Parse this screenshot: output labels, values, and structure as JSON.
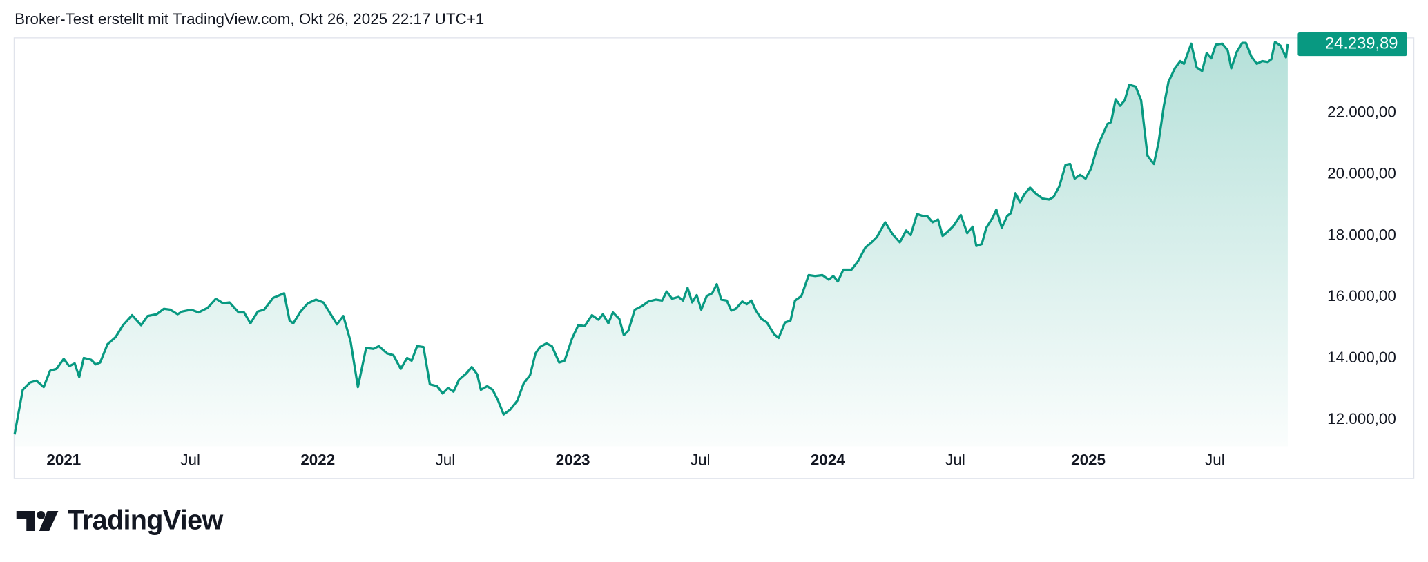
{
  "chart_data": {
    "type": "area",
    "title": "Broker-Test erstellt mit TradingView.com, Okt 26, 2025 22:17 UTC+1",
    "brand": "TradingView",
    "color": "#089981",
    "price_label": "24.239,89",
    "xlim": [
      0,
      1398
    ],
    "ylim": [
      11140,
      24460
    ],
    "xticks": [
      {
        "value": 54,
        "label": "2021"
      },
      {
        "value": 193,
        "label": "Jul"
      },
      {
        "value": 333,
        "label": "2022"
      },
      {
        "value": 473,
        "label": "Jul"
      },
      {
        "value": 613,
        "label": "2023"
      },
      {
        "value": 753,
        "label": "Jul"
      },
      {
        "value": 893,
        "label": "2024"
      },
      {
        "value": 1033,
        "label": "Jul"
      },
      {
        "value": 1179,
        "label": "2025"
      },
      {
        "value": 1318,
        "label": "Jul"
      }
    ],
    "yticks": [
      {
        "value": 12000,
        "label": "12.000,00"
      },
      {
        "value": 14000,
        "label": "14.000,00"
      },
      {
        "value": 16000,
        "label": "16.000,00"
      },
      {
        "value": 18000,
        "label": "18.000,00"
      },
      {
        "value": 20000,
        "label": "20.000,00"
      },
      {
        "value": 22000,
        "label": "22.000,00"
      }
    ],
    "x": [
      0,
      9,
      17,
      24,
      32,
      39,
      46,
      54,
      60,
      66,
      71,
      76,
      84,
      89,
      94,
      102,
      111,
      119,
      129,
      139,
      146,
      156,
      164,
      171,
      179,
      184,
      194,
      202,
      212,
      221,
      229,
      236,
      246,
      252,
      259,
      267,
      274,
      284,
      296,
      302,
      306,
      314,
      322,
      331,
      339,
      349,
      354,
      361,
      369,
      377,
      386,
      394,
      400,
      409,
      416,
      424,
      431,
      436,
      442,
      449,
      456,
      464,
      470,
      476,
      482,
      488,
      496,
      502,
      508,
      512,
      519,
      525,
      531,
      537,
      544,
      552,
      559,
      566,
      572,
      577,
      584,
      590,
      598,
      604,
      612,
      619,
      626,
      634,
      641,
      646,
      652,
      657,
      664,
      669,
      674,
      681,
      689,
      696,
      704,
      711,
      716,
      722,
      729,
      734,
      739,
      744,
      749,
      754,
      760,
      766,
      771,
      776,
      782,
      787,
      792,
      799,
      804,
      809,
      814,
      820,
      826,
      834,
      839,
      846,
      852,
      857,
      864,
      872,
      879,
      887,
      894,
      899,
      904,
      910,
      919,
      926,
      934,
      941,
      947,
      956,
      964,
      972,
      979,
      984,
      991,
      997,
      1002,
      1008,
      1014,
      1019,
      1024,
      1031,
      1039,
      1046,
      1052,
      1056,
      1062,
      1067,
      1074,
      1078,
      1084,
      1090,
      1094,
      1099,
      1104,
      1109,
      1115,
      1122,
      1129,
      1136,
      1141,
      1147,
      1154,
      1159,
      1164,
      1170,
      1176,
      1182,
      1189,
      1196,
      1200,
      1204,
      1209,
      1214,
      1219,
      1224,
      1231,
      1237,
      1244,
      1251,
      1256,
      1262,
      1267,
      1274,
      1280,
      1284,
      1292,
      1298,
      1304,
      1309,
      1314,
      1319,
      1326,
      1332,
      1336,
      1342,
      1348,
      1352,
      1358,
      1364,
      1370,
      1376,
      1380,
      1384,
      1390,
      1396,
      1398
    ],
    "values": [
      11525,
      12979,
      13216,
      13276,
      13068,
      13602,
      13662,
      13988,
      13751,
      13840,
      13394,
      14018,
      13958,
      13810,
      13869,
      14463,
      14700,
      15086,
      15412,
      15086,
      15382,
      15442,
      15620,
      15590,
      15442,
      15531,
      15590,
      15501,
      15649,
      15946,
      15798,
      15827,
      15501,
      15501,
      15145,
      15531,
      15590,
      15976,
      16124,
      15234,
      15145,
      15531,
      15798,
      15916,
      15827,
      15353,
      15115,
      15382,
      14552,
      13068,
      14344,
      14314,
      14403,
      14166,
      14107,
      13662,
      14018,
      13929,
      14403,
      14374,
      13157,
      13098,
      12860,
      13038,
      12920,
      13305,
      13513,
      13721,
      13484,
      12979,
      13098,
      12979,
      12623,
      12178,
      12326,
      12623,
      13187,
      13454,
      14166,
      14374,
      14492,
      14403,
      13869,
      13929,
      14641,
      15086,
      15056,
      15412,
      15264,
      15442,
      15145,
      15501,
      15293,
      14759,
      14908,
      15590,
      15709,
      15857,
      15916,
      15887,
      16183,
      15946,
      16005,
      15887,
      16302,
      15827,
      16065,
      15590,
      16035,
      16124,
      16421,
      15916,
      15887,
      15560,
      15620,
      15857,
      15768,
      15887,
      15560,
      15293,
      15175,
      14789,
      14670,
      15175,
      15234,
      15887,
      16035,
      16718,
      16688,
      16718,
      16569,
      16688,
      16510,
      16896,
      16896,
      17163,
      17608,
      17786,
      17964,
      18438,
      18053,
      17786,
      18171,
      18023,
      18705,
      18646,
      18646,
      18438,
      18527,
      17993,
      18112,
      18320,
      18676,
      18082,
      18290,
      17667,
      17726,
      18260,
      18587,
      18854,
      18260,
      18646,
      18735,
      19388,
      19091,
      19358,
      19566,
      19358,
      19210,
      19180,
      19269,
      19596,
      20308,
      20337,
      19863,
      19981,
      19863,
      20189,
      20901,
      21376,
      21643,
      21702,
      22444,
      22236,
      22414,
      22919,
      22859,
      22414,
      20604,
      20337,
      21020,
      22236,
      23008,
      23453,
      23690,
      23601,
      24254,
      23482,
      23364,
      23957,
      23779,
      24224,
      24254,
      24046,
      23453,
      23987,
      24283,
      24283,
      23838,
      23601,
      23690,
      23660,
      23749,
      24313,
      24194,
      23809,
      24239.89
    ]
  }
}
